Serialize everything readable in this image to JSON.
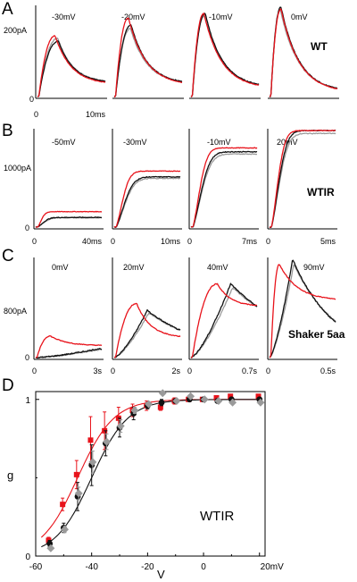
{
  "colors": {
    "red": "#e8131b",
    "black": "#111111",
    "grey": "#9a9a9a"
  },
  "panels": [
    {
      "letter": "A",
      "ytick": "200pA",
      "label": "WT",
      "subplots": [
        {
          "voltage": "-30mV",
          "xlabels": [
            "0",
            "10ms"
          ],
          "kind": "transient",
          "peak": 0.62,
          "tpeak": 0.28,
          "red_peak": 0.68,
          "red_tpeak": 0.24,
          "end": 0.15,
          "grey_scale": 1.05
        },
        {
          "voltage": "-20mV",
          "xlabels": [
            "",
            ""
          ],
          "kind": "transient",
          "peak": 0.8,
          "tpeak": 0.22,
          "red_peak": 0.88,
          "red_tpeak": 0.19,
          "end": 0.14,
          "grey_scale": 0.95
        },
        {
          "voltage": "-10mV",
          "xlabels": [
            "",
            ""
          ],
          "kind": "transient",
          "peak": 0.93,
          "tpeak": 0.18,
          "red_peak": 0.93,
          "red_tpeak": 0.17,
          "end": 0.1,
          "grey_scale": 0.97
        },
        {
          "voltage": "0mV",
          "xlabels": [
            "",
            ""
          ],
          "kind": "transient",
          "peak": 1.0,
          "tpeak": 0.14,
          "red_peak": 0.98,
          "red_tpeak": 0.15,
          "end": 0.05,
          "grey_scale": 0.97
        }
      ]
    },
    {
      "letter": "B",
      "ytick": "1000pA",
      "label": "WTIR",
      "subplots": [
        {
          "voltage": "-50mV",
          "xlabels": [
            "0",
            "40ms"
          ],
          "kind": "rise",
          "plateau": 0.1,
          "red_plateau": 0.16,
          "tau": 0.15,
          "red_tau": 0.1
        },
        {
          "voltage": "-30mV",
          "xlabels": [
            "0",
            "10ms"
          ],
          "kind": "rise",
          "plateau": 0.52,
          "red_plateau": 0.58,
          "tau": 0.22,
          "red_tau": 0.17
        },
        {
          "voltage": "-10mV",
          "xlabels": [
            "0",
            "7ms"
          ],
          "kind": "rise",
          "plateau": 0.78,
          "red_plateau": 0.82,
          "tau": 0.22,
          "red_tau": 0.18
        },
        {
          "voltage": "20mV",
          "xlabels": [
            "0",
            "5ms"
          ],
          "kind": "rise",
          "plateau": 1.0,
          "red_plateau": 1.0,
          "tau": 0.2,
          "red_tau": 0.17
        }
      ]
    },
    {
      "letter": "C",
      "ytick": "800pA",
      "label": "Shaker 5aa",
      "subplots": [
        {
          "voltage": "0mV",
          "xlabels": [
            "0",
            "3s"
          ],
          "kind": "slow",
          "black_peak": 0.09,
          "black_tpeak": 0.95,
          "red_peak": 0.22,
          "red_tpeak": 0.2,
          "red_end": 0.12
        },
        {
          "voltage": "20mV",
          "xlabels": [
            "0",
            "2s"
          ],
          "kind": "slow",
          "black_peak": 0.48,
          "black_tpeak": 0.5,
          "red_peak": 0.55,
          "red_tpeak": 0.32,
          "red_end": 0.2
        },
        {
          "voltage": "40mV",
          "xlabels": [
            "0",
            "0.7s"
          ],
          "kind": "slow",
          "black_peak": 0.75,
          "black_tpeak": 0.6,
          "red_peak": 0.75,
          "red_tpeak": 0.38,
          "red_end": 0.52
        },
        {
          "voltage": "90mV",
          "xlabels": [
            "0",
            "0.5s"
          ],
          "kind": "slow",
          "black_peak": 1.0,
          "black_tpeak": 0.35,
          "red_peak": 0.95,
          "red_tpeak": 0.13,
          "red_end": 0.58
        }
      ]
    }
  ],
  "panel_d": {
    "letter": "D"
  },
  "chart_data": {
    "type": "scatter",
    "title": "",
    "annotation": "WTIR",
    "xlabel": "V",
    "ylabel": "g",
    "xlim": [
      -60,
      22
    ],
    "ylim": [
      0,
      1.05
    ],
    "xticks": [
      "-60",
      "-40",
      "-20",
      "0",
      "20mV"
    ],
    "yticks": [
      "0",
      "1"
    ],
    "series": [
      {
        "color": "red",
        "marker": "square",
        "x": [
          -55,
          -50,
          -45,
          -40,
          -35,
          -30,
          -25,
          -20,
          -15,
          -10,
          -5,
          0,
          5,
          10,
          20
        ],
        "y": [
          0.1,
          0.33,
          0.52,
          0.74,
          0.8,
          0.88,
          0.93,
          0.96,
          0.95,
          0.99,
          1.0,
          1.0,
          1.01,
          1.02,
          1.02
        ],
        "err": [
          0.02,
          0.04,
          0.09,
          0.15,
          0.12,
          0.07,
          0.04,
          0.03,
          0.02,
          0.02,
          0.01,
          0.01,
          0.01,
          0.01,
          0.01
        ]
      },
      {
        "color": "black",
        "marker": "circle",
        "x": [
          -55,
          -50,
          -45,
          -40,
          -35,
          -30,
          -25,
          -20,
          -15,
          -10,
          -5,
          0,
          5,
          10,
          20
        ],
        "y": [
          0.08,
          0.18,
          0.38,
          0.58,
          0.72,
          0.82,
          0.91,
          0.96,
          0.98,
          0.99,
          1.0,
          1.0,
          0.99,
          1.0,
          1.0
        ],
        "err": [
          0.02,
          0.03,
          0.09,
          0.13,
          0.08,
          0.06,
          0.04,
          0.02,
          0.02,
          0.01,
          0.01,
          0.01,
          0.01,
          0.01,
          0.01
        ]
      },
      {
        "color": "grey",
        "marker": "diamond",
        "x": [
          -55,
          -50,
          -45,
          -40,
          -35,
          -30,
          -25,
          -20,
          -15,
          -10,
          -5,
          0,
          5,
          10,
          20
        ],
        "y": [
          0.05,
          0.17,
          0.4,
          0.6,
          0.73,
          0.83,
          0.93,
          0.97,
          1.04,
          0.99,
          1.02,
          1.0,
          0.99,
          0.98,
          0.98
        ],
        "err": [
          0.01,
          0.02,
          0.04,
          0.07,
          0.05,
          0.04,
          0.02,
          0.01,
          0.01,
          0.01,
          0.01,
          0.01,
          0.01,
          0.01,
          0.01
        ]
      }
    ],
    "fits": [
      {
        "color": "red",
        "v_half": -45,
        "slope": 6.5
      },
      {
        "color": "black",
        "v_half": -40,
        "slope": 6.5
      }
    ]
  }
}
